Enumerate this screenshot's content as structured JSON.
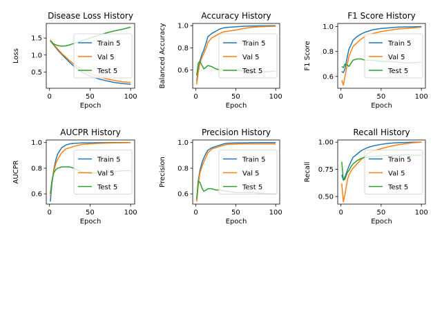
{
  "colors": {
    "train": "#1f77b4",
    "val": "#ff7f0e",
    "test": "#2ca02c"
  },
  "chart_data": [
    {
      "type": "line",
      "title": "Disease Loss History",
      "xlabel": "Epoch",
      "ylabel": "Loss",
      "xlim": [
        -4,
        105
      ],
      "ylim": [
        0.02,
        1.93
      ],
      "xticks": [
        0,
        50,
        100
      ],
      "yticks": [
        0.5,
        1.0,
        1.5
      ],
      "ytick_labels": [
        "0.5",
        "1.0",
        "1.5"
      ],
      "legend": "center-right",
      "series": [
        {
          "name": "Train 5",
          "color": "#1f77b4",
          "x": [
            1,
            5,
            10,
            15,
            20,
            25,
            30,
            35,
            40,
            50,
            60,
            70,
            80,
            90,
            100
          ],
          "y": [
            1.42,
            1.3,
            1.15,
            1.02,
            0.9,
            0.78,
            0.67,
            0.58,
            0.5,
            0.38,
            0.3,
            0.24,
            0.19,
            0.16,
            0.14
          ]
        },
        {
          "name": "Val 5",
          "color": "#ff7f0e",
          "x": [
            1,
            5,
            10,
            15,
            20,
            25,
            30,
            35,
            40,
            50,
            60,
            70,
            80,
            90,
            100
          ],
          "y": [
            1.45,
            1.32,
            1.18,
            1.05,
            0.94,
            0.83,
            0.73,
            0.65,
            0.58,
            0.46,
            0.37,
            0.3,
            0.25,
            0.21,
            0.19
          ]
        },
        {
          "name": "Test 5",
          "color": "#2ca02c",
          "x": [
            1,
            5,
            10,
            15,
            20,
            25,
            30,
            40,
            50,
            60,
            70,
            80,
            90,
            100
          ],
          "y": [
            1.4,
            1.33,
            1.28,
            1.26,
            1.27,
            1.3,
            1.34,
            1.42,
            1.5,
            1.58,
            1.65,
            1.71,
            1.76,
            1.82
          ]
        }
      ]
    },
    {
      "type": "line",
      "title": "Accuracy History",
      "xlabel": "Epoch",
      "ylabel": "Balanced Accuracy",
      "xlim": [
        -4,
        105
      ],
      "ylim": [
        0.435,
        1.02
      ],
      "xticks": [
        0,
        50,
        100
      ],
      "yticks": [
        0.6,
        0.8,
        1.0
      ],
      "ytick_labels": [
        "0.6",
        "0.8",
        "1.0"
      ],
      "legend": "center-right",
      "series": [
        {
          "name": "Train 5",
          "color": "#1f77b4",
          "x": [
            1,
            3,
            5,
            8,
            10,
            13,
            15,
            20,
            25,
            30,
            35,
            40,
            50,
            60,
            70,
            80,
            90,
            100
          ],
          "y": [
            0.5,
            0.6,
            0.68,
            0.75,
            0.78,
            0.85,
            0.9,
            0.93,
            0.95,
            0.97,
            0.98,
            0.985,
            0.99,
            0.995,
            0.997,
            0.998,
            0.999,
            1.0
          ]
        },
        {
          "name": "Val 5",
          "color": "#ff7f0e",
          "x": [
            1,
            3,
            5,
            8,
            10,
            13,
            15,
            20,
            25,
            30,
            35,
            40,
            50,
            60,
            70,
            80,
            90,
            100
          ],
          "y": [
            0.47,
            0.58,
            0.66,
            0.72,
            0.75,
            0.8,
            0.85,
            0.89,
            0.91,
            0.93,
            0.945,
            0.95,
            0.96,
            0.975,
            0.985,
            0.99,
            0.993,
            0.995
          ]
        },
        {
          "name": "Test 5",
          "color": "#2ca02c",
          "x": [
            1,
            3,
            5,
            7,
            10,
            12,
            15,
            20,
            25,
            30,
            40,
            50,
            60,
            70,
            80,
            90,
            100
          ],
          "y": [
            0.55,
            0.66,
            0.68,
            0.65,
            0.61,
            0.62,
            0.64,
            0.63,
            0.61,
            0.6,
            0.6,
            0.6,
            0.59,
            0.585,
            0.58,
            0.585,
            0.59
          ]
        }
      ]
    },
    {
      "type": "line",
      "title": "F1 Score History",
      "xlabel": "Epoch",
      "ylabel": "F1 Score",
      "xlim": [
        -4,
        105
      ],
      "ylim": [
        0.505,
        1.025
      ],
      "xticks": [
        0,
        50,
        100
      ],
      "yticks": [
        0.6,
        0.8,
        1.0
      ],
      "ytick_labels": [
        "0.6",
        "0.8",
        "1.0"
      ],
      "legend": "center-right",
      "series": [
        {
          "name": "Train 5",
          "color": "#1f77b4",
          "x": [
            1,
            3,
            5,
            8,
            10,
            13,
            15,
            20,
            25,
            30,
            35,
            40,
            50,
            60,
            70,
            80,
            90,
            100
          ],
          "y": [
            0.64,
            0.63,
            0.66,
            0.76,
            0.82,
            0.86,
            0.89,
            0.92,
            0.94,
            0.955,
            0.965,
            0.975,
            0.985,
            0.99,
            0.995,
            0.997,
            0.998,
            1.0
          ]
        },
        {
          "name": "Val 5",
          "color": "#ff7f0e",
          "x": [
            1,
            3,
            5,
            8,
            10,
            13,
            15,
            20,
            25,
            30,
            35,
            40,
            50,
            60,
            70,
            80,
            90,
            100
          ],
          "y": [
            0.57,
            0.53,
            0.6,
            0.7,
            0.76,
            0.81,
            0.84,
            0.87,
            0.9,
            0.92,
            0.935,
            0.945,
            0.96,
            0.97,
            0.98,
            0.985,
            0.99,
            0.995
          ]
        },
        {
          "name": "Test 5",
          "color": "#2ca02c",
          "x": [
            1,
            3,
            5,
            8,
            10,
            13,
            15,
            20,
            25,
            30,
            40,
            50,
            60,
            70,
            80,
            90,
            100
          ],
          "y": [
            0.68,
            0.67,
            0.7,
            0.69,
            0.68,
            0.71,
            0.73,
            0.74,
            0.74,
            0.73,
            0.73,
            0.72,
            0.72,
            0.715,
            0.71,
            0.71,
            0.715
          ]
        }
      ]
    },
    {
      "type": "line",
      "title": "AUCPR History",
      "xlabel": "Epoch",
      "ylabel": "AUCPR",
      "xlim": [
        -4,
        105
      ],
      "ylim": [
        0.52,
        1.02
      ],
      "xticks": [
        0,
        50,
        100
      ],
      "yticks": [
        0.6,
        0.8,
        1.0
      ],
      "ytick_labels": [
        "0.6",
        "0.8",
        "1.0"
      ],
      "legend": "center-right",
      "series": [
        {
          "name": "Train 5",
          "color": "#1f77b4",
          "x": [
            1,
            3,
            5,
            8,
            10,
            13,
            15,
            20,
            25,
            30,
            40,
            50,
            60,
            70,
            80,
            90,
            100
          ],
          "y": [
            0.54,
            0.68,
            0.78,
            0.87,
            0.91,
            0.94,
            0.96,
            0.98,
            0.99,
            0.994,
            0.997,
            0.998,
            0.999,
            0.999,
            1.0,
            1.0,
            1.0
          ]
        },
        {
          "name": "Val 5",
          "color": "#ff7f0e",
          "x": [
            1,
            3,
            5,
            8,
            10,
            13,
            15,
            20,
            25,
            30,
            40,
            50,
            60,
            70,
            80,
            90,
            100
          ],
          "y": [
            0.58,
            0.7,
            0.77,
            0.84,
            0.87,
            0.9,
            0.92,
            0.95,
            0.96,
            0.97,
            0.985,
            0.99,
            0.993,
            0.995,
            0.997,
            0.998,
            0.999
          ]
        },
        {
          "name": "Test 5",
          "color": "#2ca02c",
          "x": [
            1,
            3,
            5,
            8,
            10,
            13,
            15,
            20,
            25,
            30,
            40,
            50,
            60,
            70,
            80,
            90,
            100
          ],
          "y": [
            0.6,
            0.7,
            0.76,
            0.79,
            0.8,
            0.805,
            0.81,
            0.81,
            0.81,
            0.8,
            0.77,
            0.76,
            0.765,
            0.77,
            0.775,
            0.78,
            0.78
          ]
        }
      ]
    },
    {
      "type": "line",
      "title": "Precision History",
      "xlabel": "Epoch",
      "ylabel": "Precision",
      "xlim": [
        -4,
        105
      ],
      "ylim": [
        0.52,
        1.02
      ],
      "xticks": [
        0,
        50,
        100
      ],
      "yticks": [
        0.6,
        0.8,
        1.0
      ],
      "ytick_labels": [
        "0.6",
        "0.8",
        "1.0"
      ],
      "legend": "center-right",
      "series": [
        {
          "name": "Train 5",
          "color": "#1f77b4",
          "x": [
            1,
            3,
            5,
            8,
            10,
            13,
            15,
            20,
            25,
            30,
            35,
            40,
            50,
            60,
            70,
            80,
            90,
            100
          ],
          "y": [
            0.55,
            0.7,
            0.78,
            0.85,
            0.88,
            0.92,
            0.94,
            0.96,
            0.97,
            0.98,
            0.99,
            0.995,
            0.997,
            0.998,
            0.999,
            1.0,
            1.0,
            1.0
          ]
        },
        {
          "name": "Val 5",
          "color": "#ff7f0e",
          "x": [
            1,
            3,
            5,
            8,
            10,
            13,
            15,
            20,
            25,
            30,
            35,
            40,
            50,
            60,
            70,
            80,
            90,
            100
          ],
          "y": [
            0.54,
            0.67,
            0.76,
            0.82,
            0.85,
            0.89,
            0.92,
            0.95,
            0.96,
            0.97,
            0.98,
            0.985,
            0.988,
            0.99,
            0.99,
            0.99,
            0.99,
            0.99
          ]
        },
        {
          "name": "Test 5",
          "color": "#2ca02c",
          "x": [
            1,
            3,
            5,
            8,
            10,
            13,
            15,
            20,
            25,
            30,
            40,
            50,
            60,
            70,
            80,
            90,
            100
          ],
          "y": [
            0.56,
            0.7,
            0.69,
            0.64,
            0.62,
            0.63,
            0.64,
            0.64,
            0.63,
            0.63,
            0.62,
            0.61,
            0.61,
            0.61,
            0.605,
            0.6,
            0.6
          ]
        }
      ]
    },
    {
      "type": "line",
      "title": "Recall History",
      "xlabel": "Epoch",
      "ylabel": "Recall",
      "xlim": [
        -4,
        105
      ],
      "ylim": [
        0.43,
        1.02
      ],
      "xticks": [
        0,
        50,
        100
      ],
      "yticks": [
        0.5,
        0.75,
        1.0
      ],
      "ytick_labels": [
        "0.50",
        "0.75",
        "1.00"
      ],
      "legend": "center-right",
      "series": [
        {
          "name": "Train 5",
          "color": "#1f77b4",
          "x": [
            1,
            3,
            5,
            8,
            10,
            13,
            15,
            20,
            25,
            30,
            35,
            40,
            50,
            60,
            70,
            80,
            90,
            100
          ],
          "y": [
            0.7,
            0.65,
            0.68,
            0.74,
            0.78,
            0.83,
            0.86,
            0.89,
            0.92,
            0.94,
            0.955,
            0.965,
            0.98,
            0.99,
            0.995,
            0.997,
            0.999,
            1.0
          ]
        },
        {
          "name": "Val 5",
          "color": "#ff7f0e",
          "x": [
            1,
            3,
            5,
            8,
            10,
            13,
            15,
            20,
            25,
            30,
            35,
            40,
            50,
            60,
            70,
            80,
            90,
            100
          ],
          "y": [
            0.62,
            0.45,
            0.52,
            0.65,
            0.7,
            0.74,
            0.76,
            0.8,
            0.84,
            0.87,
            0.9,
            0.92,
            0.94,
            0.96,
            0.975,
            0.985,
            0.995,
            1.0
          ]
        },
        {
          "name": "Test 5",
          "color": "#2ca02c",
          "x": [
            1,
            3,
            5,
            8,
            10,
            13,
            15,
            20,
            25,
            30,
            40,
            50,
            60,
            70,
            80,
            90,
            100
          ],
          "y": [
            0.82,
            0.65,
            0.66,
            0.72,
            0.74,
            0.78,
            0.8,
            0.83,
            0.85,
            0.86,
            0.87,
            0.875,
            0.88,
            0.88,
            0.885,
            0.88,
            0.88
          ]
        }
      ]
    }
  ]
}
